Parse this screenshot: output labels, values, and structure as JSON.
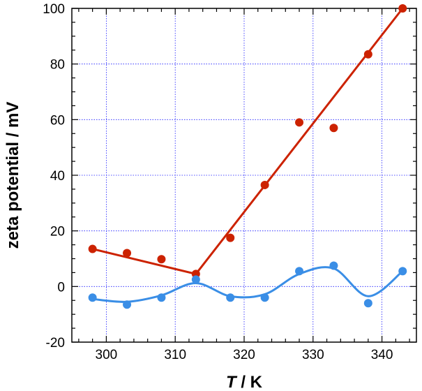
{
  "chart_data": {
    "type": "scatter",
    "xlabel_var": "T",
    "xlabel_unit": " / K",
    "ylabel": "zeta potential / mV",
    "xlim": [
      295,
      345
    ],
    "ylim": [
      -20,
      100
    ],
    "grid": true,
    "xticks": [
      300,
      310,
      320,
      330,
      340
    ],
    "yticks": [
      -20,
      0,
      20,
      40,
      60,
      80,
      100
    ],
    "colors": {
      "red": "#cc2200",
      "blue": "#3a8ee6",
      "grid": "#1a1aff"
    },
    "series": [
      {
        "color": "red",
        "x": [
          298,
          303,
          308,
          313,
          318,
          323,
          328,
          333,
          338,
          343
        ],
        "y": [
          13.5,
          12,
          9.8,
          4.5,
          17.5,
          36.5,
          59,
          57,
          83.5,
          100
        ],
        "fit_lines": [
          {
            "x": [
              298,
              313
            ],
            "y": [
              13.5,
              4.5
            ]
          },
          {
            "x": [
              313,
              343
            ],
            "y": [
              4.5,
              100
            ]
          }
        ]
      },
      {
        "color": "blue",
        "x": [
          298,
          303,
          308,
          313,
          318,
          323,
          328,
          333,
          338,
          343
        ],
        "y": [
          -4,
          -6.5,
          -4,
          2.5,
          -4,
          -4,
          5.5,
          7.5,
          -6,
          5.5
        ],
        "fit_curve": {
          "x": [
            298,
            303,
            308,
            313,
            318,
            323,
            328,
            333,
            338,
            343
          ],
          "y": [
            -4.5,
            -5.5,
            -3.2,
            1.2,
            -3.5,
            -2.8,
            4.5,
            6.5,
            -3.5,
            5.5
          ]
        }
      }
    ]
  }
}
